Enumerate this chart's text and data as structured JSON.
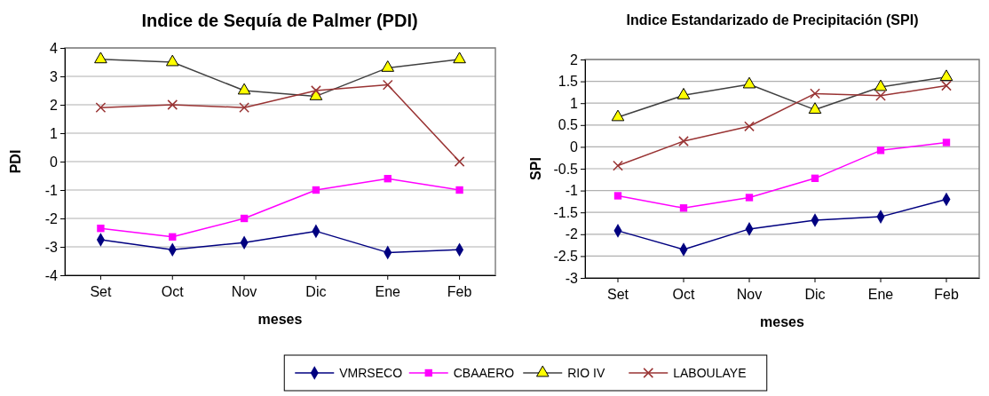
{
  "chart_data": [
    {
      "type": "line",
      "title": "Indice de Sequía de Palmer (PDI)",
      "xlabel": "meses",
      "ylabel": "PDI",
      "categories": [
        "Set",
        "Oct",
        "Nov",
        "Dic",
        "Ene",
        "Feb"
      ],
      "ylim": [
        -4,
        4
      ],
      "yticks": [
        -4,
        -3,
        -2,
        -1,
        0,
        1,
        2,
        3,
        4
      ],
      "grid": "y",
      "legend": "bottom",
      "series": [
        {
          "name": "VMRSECO",
          "color": "#000080",
          "marker": "diamond",
          "values": [
            -2.75,
            -3.1,
            -2.85,
            -2.45,
            -3.2,
            -3.1
          ]
        },
        {
          "name": "CBAAERO",
          "color": "#ff00ff",
          "marker": "square",
          "values": [
            -2.35,
            -2.65,
            -2.0,
            -1.0,
            -0.6,
            -1.0
          ]
        },
        {
          "name": "RIO IV",
          "color": "#404040",
          "marker": "triangle",
          "values": [
            3.6,
            3.5,
            2.5,
            2.3,
            3.3,
            3.6
          ]
        },
        {
          "name": "LABOULAYE",
          "color": "#993333",
          "marker": "cross",
          "values": [
            1.9,
            2.0,
            1.9,
            2.5,
            2.7,
            0.0
          ]
        }
      ]
    },
    {
      "type": "line",
      "title": "Indice Estandarizado de Precipitación (SPI)",
      "xlabel": "meses",
      "ylabel": "SPI",
      "categories": [
        "Set",
        "Oct",
        "Nov",
        "Dic",
        "Ene",
        "Feb"
      ],
      "ylim": [
        -3,
        2
      ],
      "yticks": [
        -3,
        -2.5,
        -2,
        -1.5,
        -1,
        -0.5,
        0,
        0.5,
        1,
        1.5,
        2
      ],
      "grid": "y",
      "legend": "bottom",
      "series": [
        {
          "name": "VMRSECO",
          "color": "#000080",
          "marker": "diamond",
          "values": [
            -1.92,
            -2.35,
            -1.88,
            -1.68,
            -1.6,
            -1.2
          ]
        },
        {
          "name": "CBAAERO",
          "color": "#ff00ff",
          "marker": "square",
          "values": [
            -1.12,
            -1.4,
            -1.16,
            -0.72,
            -0.08,
            0.1
          ]
        },
        {
          "name": "RIO IV",
          "color": "#404040",
          "marker": "triangle",
          "values": [
            0.68,
            1.18,
            1.43,
            0.85,
            1.37,
            1.6
          ]
        },
        {
          "name": "LABOULAYE",
          "color": "#993333",
          "marker": "cross",
          "values": [
            -0.43,
            0.13,
            0.47,
            1.22,
            1.17,
            1.4
          ]
        }
      ]
    }
  ]
}
